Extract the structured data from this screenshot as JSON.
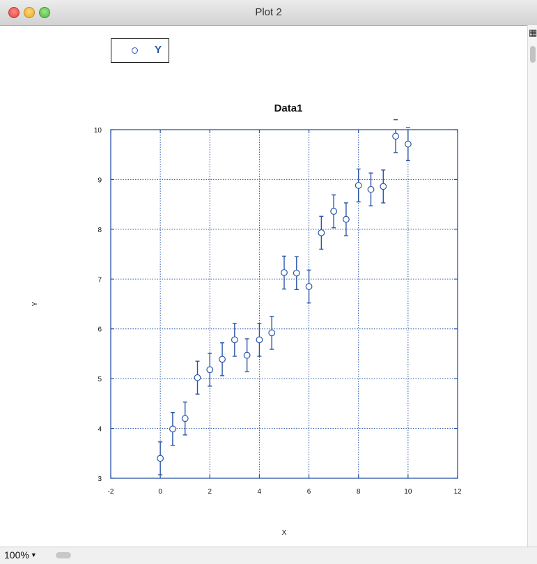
{
  "window": {
    "title": "Plot 2",
    "zoom_label": "100%"
  },
  "icons": {
    "close": "close-icon",
    "minimize": "minimize-icon",
    "zoom": "zoom-icon",
    "corner": "split-view-icon",
    "zoom_dropdown": "chevron-down-icon"
  },
  "chart_data": {
    "type": "scatter",
    "title": "Data1",
    "xlabel": "X",
    "ylabel": "Y",
    "xlim": [
      -2,
      12
    ],
    "ylim": [
      3,
      10
    ],
    "xticks": [
      -2,
      0,
      2,
      4,
      6,
      8,
      10,
      12
    ],
    "yticks": [
      3,
      4,
      5,
      6,
      7,
      8,
      9,
      10
    ],
    "grid": true,
    "error_bars": true,
    "legend": {
      "placement": "top-left",
      "entries": [
        "Y"
      ]
    },
    "colors": {
      "series": "#2a55a8",
      "frame": "#2a55a8",
      "grid": "#2a55a8"
    },
    "series": [
      {
        "name": "Y",
        "marker": "open-circle",
        "x": [
          0,
          0.5,
          1,
          1.5,
          2,
          2.5,
          3,
          3.5,
          4,
          4.5,
          5,
          5.5,
          6,
          6.5,
          7,
          7.5,
          8,
          8.5,
          9,
          9.5,
          10
        ],
        "y": [
          3.4,
          3.99,
          4.2,
          5.02,
          5.18,
          5.39,
          5.78,
          5.47,
          5.78,
          5.92,
          7.13,
          7.12,
          6.85,
          7.93,
          8.36,
          8.2,
          8.88,
          8.8,
          8.86,
          9.87,
          9.71
        ],
        "yerr": [
          0.33,
          0.33,
          0.33,
          0.33,
          0.33,
          0.33,
          0.33,
          0.33,
          0.33,
          0.33,
          0.33,
          0.33,
          0.33,
          0.33,
          0.33,
          0.33,
          0.33,
          0.33,
          0.33,
          0.33,
          0.33
        ]
      }
    ]
  }
}
